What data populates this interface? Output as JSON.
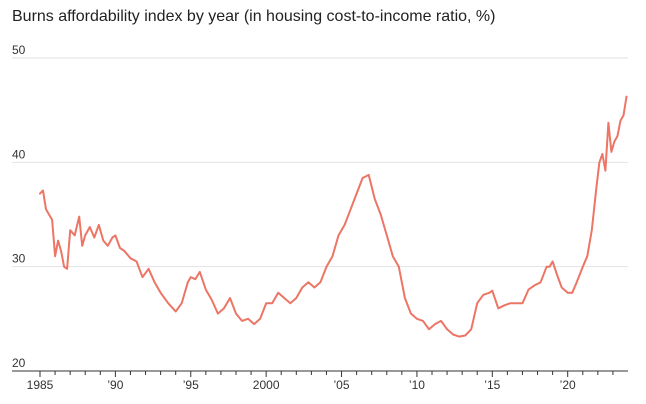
{
  "chart_data": {
    "type": "line",
    "title": "Burns affordability index by year (in housing cost-to-income ratio, %)",
    "xlabel": "",
    "ylabel": "",
    "xlim": [
      1985,
      2024
    ],
    "ylim": [
      20,
      50
    ],
    "yticks": [
      "20",
      "30",
      "40",
      "50"
    ],
    "xticks": [
      {
        "value": 1985,
        "label": "1985"
      },
      {
        "value": 1990,
        "label": "’90"
      },
      {
        "value": 1995,
        "label": "’95"
      },
      {
        "value": 2000,
        "label": "2000"
      },
      {
        "value": 2005,
        "label": "’05"
      },
      {
        "value": 2010,
        "label": "’10"
      },
      {
        "value": 2015,
        "label": "’15"
      },
      {
        "value": 2020,
        "label": "’20"
      }
    ],
    "grid": true,
    "colors": {
      "line": "#ec7565",
      "grid": "#e2e2e2",
      "axis": "#333333"
    },
    "series": [
      {
        "x": [
          1985.0,
          1985.2,
          1985.4,
          1985.6,
          1985.8,
          1986.0,
          1986.2,
          1986.4,
          1986.6,
          1986.8,
          1987.0,
          1987.3,
          1987.6,
          1987.8,
          1988.0,
          1988.3,
          1988.6,
          1988.9,
          1989.2,
          1989.5,
          1989.8,
          1990.0,
          1990.3,
          1990.6,
          1991.0,
          1991.4,
          1991.8,
          1992.2,
          1992.6,
          1993.0,
          1993.5,
          1994.0,
          1994.4,
          1994.8,
          1995.0,
          1995.3,
          1995.6,
          1996.0,
          1996.4,
          1996.8,
          1997.2,
          1997.6,
          1998.0,
          1998.4,
          1998.8,
          1999.2,
          1999.6,
          2000.0,
          2000.4,
          2000.8,
          2001.2,
          2001.6,
          2002.0,
          2002.4,
          2002.8,
          2003.2,
          2003.6,
          2004.0,
          2004.4,
          2004.8,
          2005.2,
          2005.6,
          2006.0,
          2006.4,
          2006.8,
          2007.2,
          2007.6,
          2008.0,
          2008.4,
          2008.8,
          2009.2,
          2009.6,
          2010.0,
          2010.4,
          2010.8,
          2011.2,
          2011.6,
          2012.0,
          2012.4,
          2012.8,
          2013.2,
          2013.6,
          2014.0,
          2014.4,
          2014.8,
          2015.0,
          2015.4,
          2015.8,
          2016.2,
          2016.6,
          2017.0,
          2017.4,
          2017.8,
          2018.2,
          2018.6,
          2018.8,
          2019.0,
          2019.3,
          2019.6,
          2020.0,
          2020.3,
          2020.6,
          2021.0,
          2021.3,
          2021.6,
          2021.9,
          2022.1,
          2022.3,
          2022.5,
          2022.7,
          2022.9,
          2023.1,
          2023.3,
          2023.5,
          2023.7,
          2023.9
        ],
        "y": [
          37.0,
          37.3,
          35.5,
          35.0,
          34.5,
          31.0,
          32.5,
          31.5,
          30.0,
          29.8,
          33.5,
          33.0,
          34.8,
          32.0,
          33.0,
          33.8,
          32.8,
          34.0,
          32.5,
          32.0,
          32.8,
          33.0,
          31.8,
          31.5,
          30.8,
          30.5,
          29.0,
          29.8,
          28.5,
          27.5,
          26.5,
          25.7,
          26.5,
          28.5,
          29.0,
          28.8,
          29.5,
          27.8,
          26.8,
          25.5,
          26.0,
          27.0,
          25.5,
          24.8,
          25.0,
          24.5,
          25.0,
          26.5,
          26.5,
          27.5,
          27.0,
          26.5,
          27.0,
          28.0,
          28.5,
          28.0,
          28.5,
          30.0,
          31.0,
          33.0,
          34.0,
          35.5,
          37.0,
          38.5,
          38.8,
          36.5,
          35.0,
          33.0,
          31.0,
          30.0,
          27.0,
          25.5,
          25.0,
          24.8,
          24.0,
          24.5,
          24.8,
          24.0,
          23.5,
          23.3,
          23.4,
          24.0,
          26.5,
          27.3,
          27.5,
          27.7,
          26.0,
          26.3,
          26.5,
          26.5,
          26.5,
          27.8,
          28.2,
          28.5,
          30.0,
          30.0,
          30.5,
          29.2,
          28.0,
          27.5,
          27.5,
          28.5,
          30.0,
          31.0,
          33.5,
          37.5,
          40.0,
          40.8,
          39.2,
          43.8,
          41.0,
          42.0,
          42.5,
          44.0,
          44.5,
          46.3
        ]
      }
    ]
  }
}
